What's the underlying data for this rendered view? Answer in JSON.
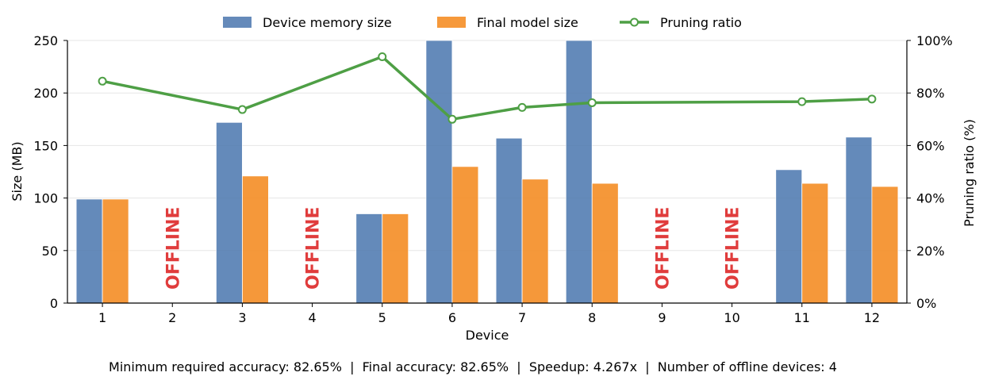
{
  "chart_data": {
    "type": "bar",
    "categories": [
      "1",
      "2",
      "3",
      "4",
      "5",
      "6",
      "7",
      "8",
      "9",
      "10",
      "11",
      "12"
    ],
    "xlabel": "Device",
    "ylabel": "Size (MB)",
    "y2label": "Pruning ratio (%)",
    "ylim": [
      0,
      250
    ],
    "y2lim": [
      0,
      100
    ],
    "yticks": [
      0,
      50,
      100,
      150,
      200,
      250
    ],
    "y2ticks": [
      0,
      20,
      40,
      60,
      80,
      100
    ],
    "y2tick_labels": [
      "0%",
      "20%",
      "40%",
      "60%",
      "80%",
      "100%"
    ],
    "grid": true,
    "legend_position": "top-center",
    "series": [
      {
        "name": "Device memory size",
        "kind": "bar",
        "color": "#4e79b0",
        "values": [
          99,
          null,
          172,
          null,
          85,
          250,
          157,
          250,
          null,
          null,
          127,
          158
        ]
      },
      {
        "name": "Final model size",
        "kind": "bar",
        "color": "#f5902a",
        "values": [
          99,
          null,
          121,
          null,
          85,
          130,
          118,
          114,
          null,
          null,
          114,
          111
        ]
      },
      {
        "name": "Pruning ratio",
        "kind": "line",
        "axis": "y2",
        "color": "#4e9f45",
        "values": [
          84.5,
          null,
          73.7,
          null,
          93.8,
          70.0,
          74.5,
          76.3,
          null,
          null,
          76.7,
          77.7
        ]
      }
    ],
    "offline_devices": [
      "2",
      "4",
      "9",
      "10"
    ],
    "offline_label": "OFFLINE"
  },
  "summary": {
    "text": "Minimum required accuracy: 82.65%  |  Final accuracy: 82.65%  |  Speedup: 4.267x  |  Number of offline devices: 4"
  }
}
